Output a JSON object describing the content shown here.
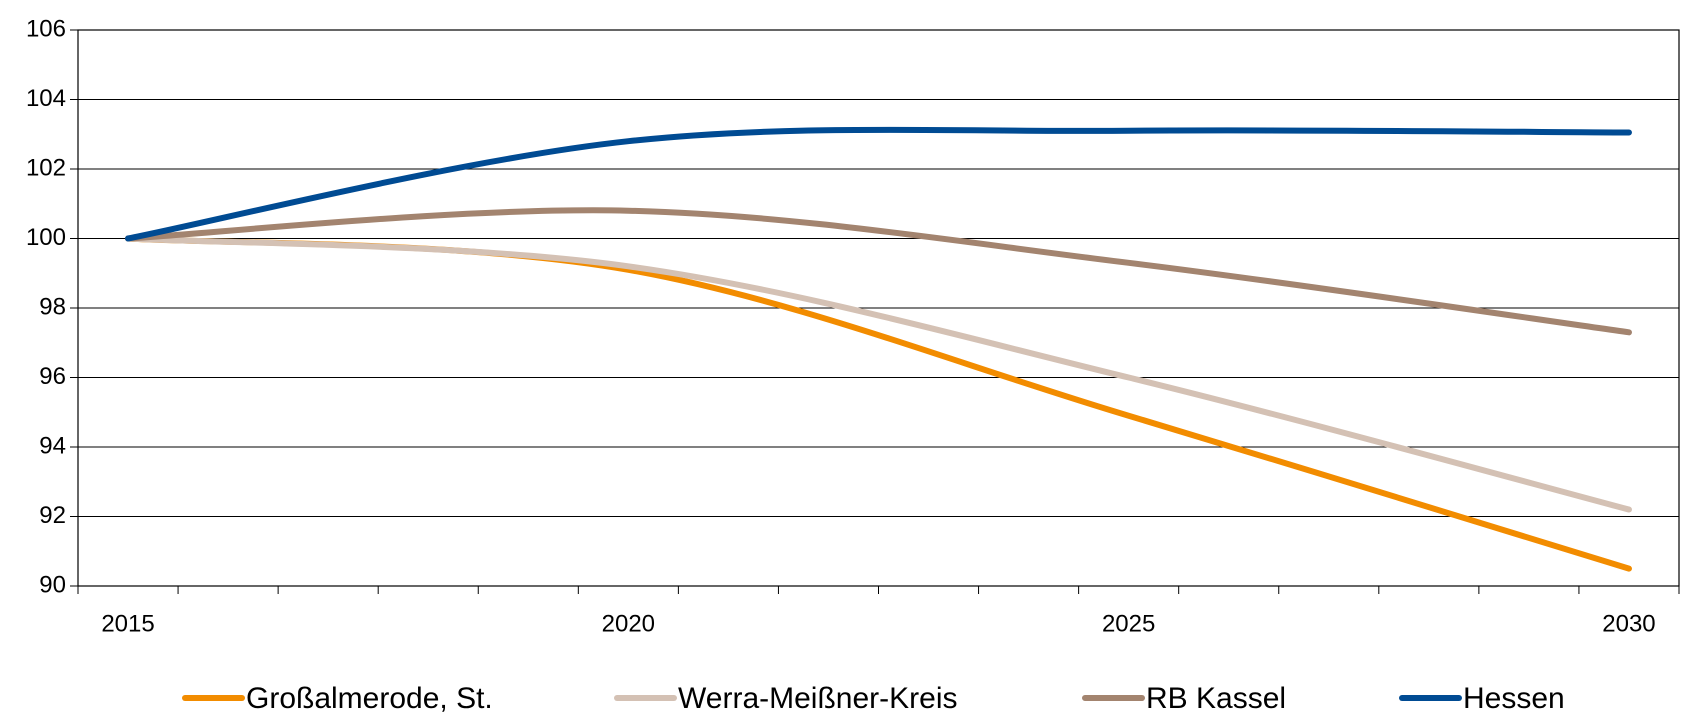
{
  "chart_data": {
    "type": "line",
    "x": [
      2015,
      2020,
      2025,
      2030
    ],
    "series": [
      {
        "name": "Großalmerode, St.",
        "color": "#f28c00",
        "values": [
          100,
          99.1,
          94.9,
          90.5
        ]
      },
      {
        "name": "Werra-Meißner-Kreis",
        "color": "#d4c1b4",
        "values": [
          100,
          99.2,
          96.0,
          92.2
        ]
      },
      {
        "name": "RB Kassel",
        "color": "#a3846f",
        "values": [
          100,
          100.8,
          99.3,
          97.3
        ]
      },
      {
        "name": "Hessen",
        "color": "#004b93",
        "values": [
          100,
          102.8,
          103.1,
          103.05
        ]
      }
    ],
    "xlim": [
      2014.5,
      2030.5
    ],
    "xticks": [
      2015,
      2020,
      2025,
      2030
    ],
    "ylim": [
      90,
      106
    ],
    "yticks": [
      90,
      92,
      94,
      96,
      98,
      100,
      102,
      104,
      106
    ],
    "grid": true,
    "legend": "bottom"
  }
}
